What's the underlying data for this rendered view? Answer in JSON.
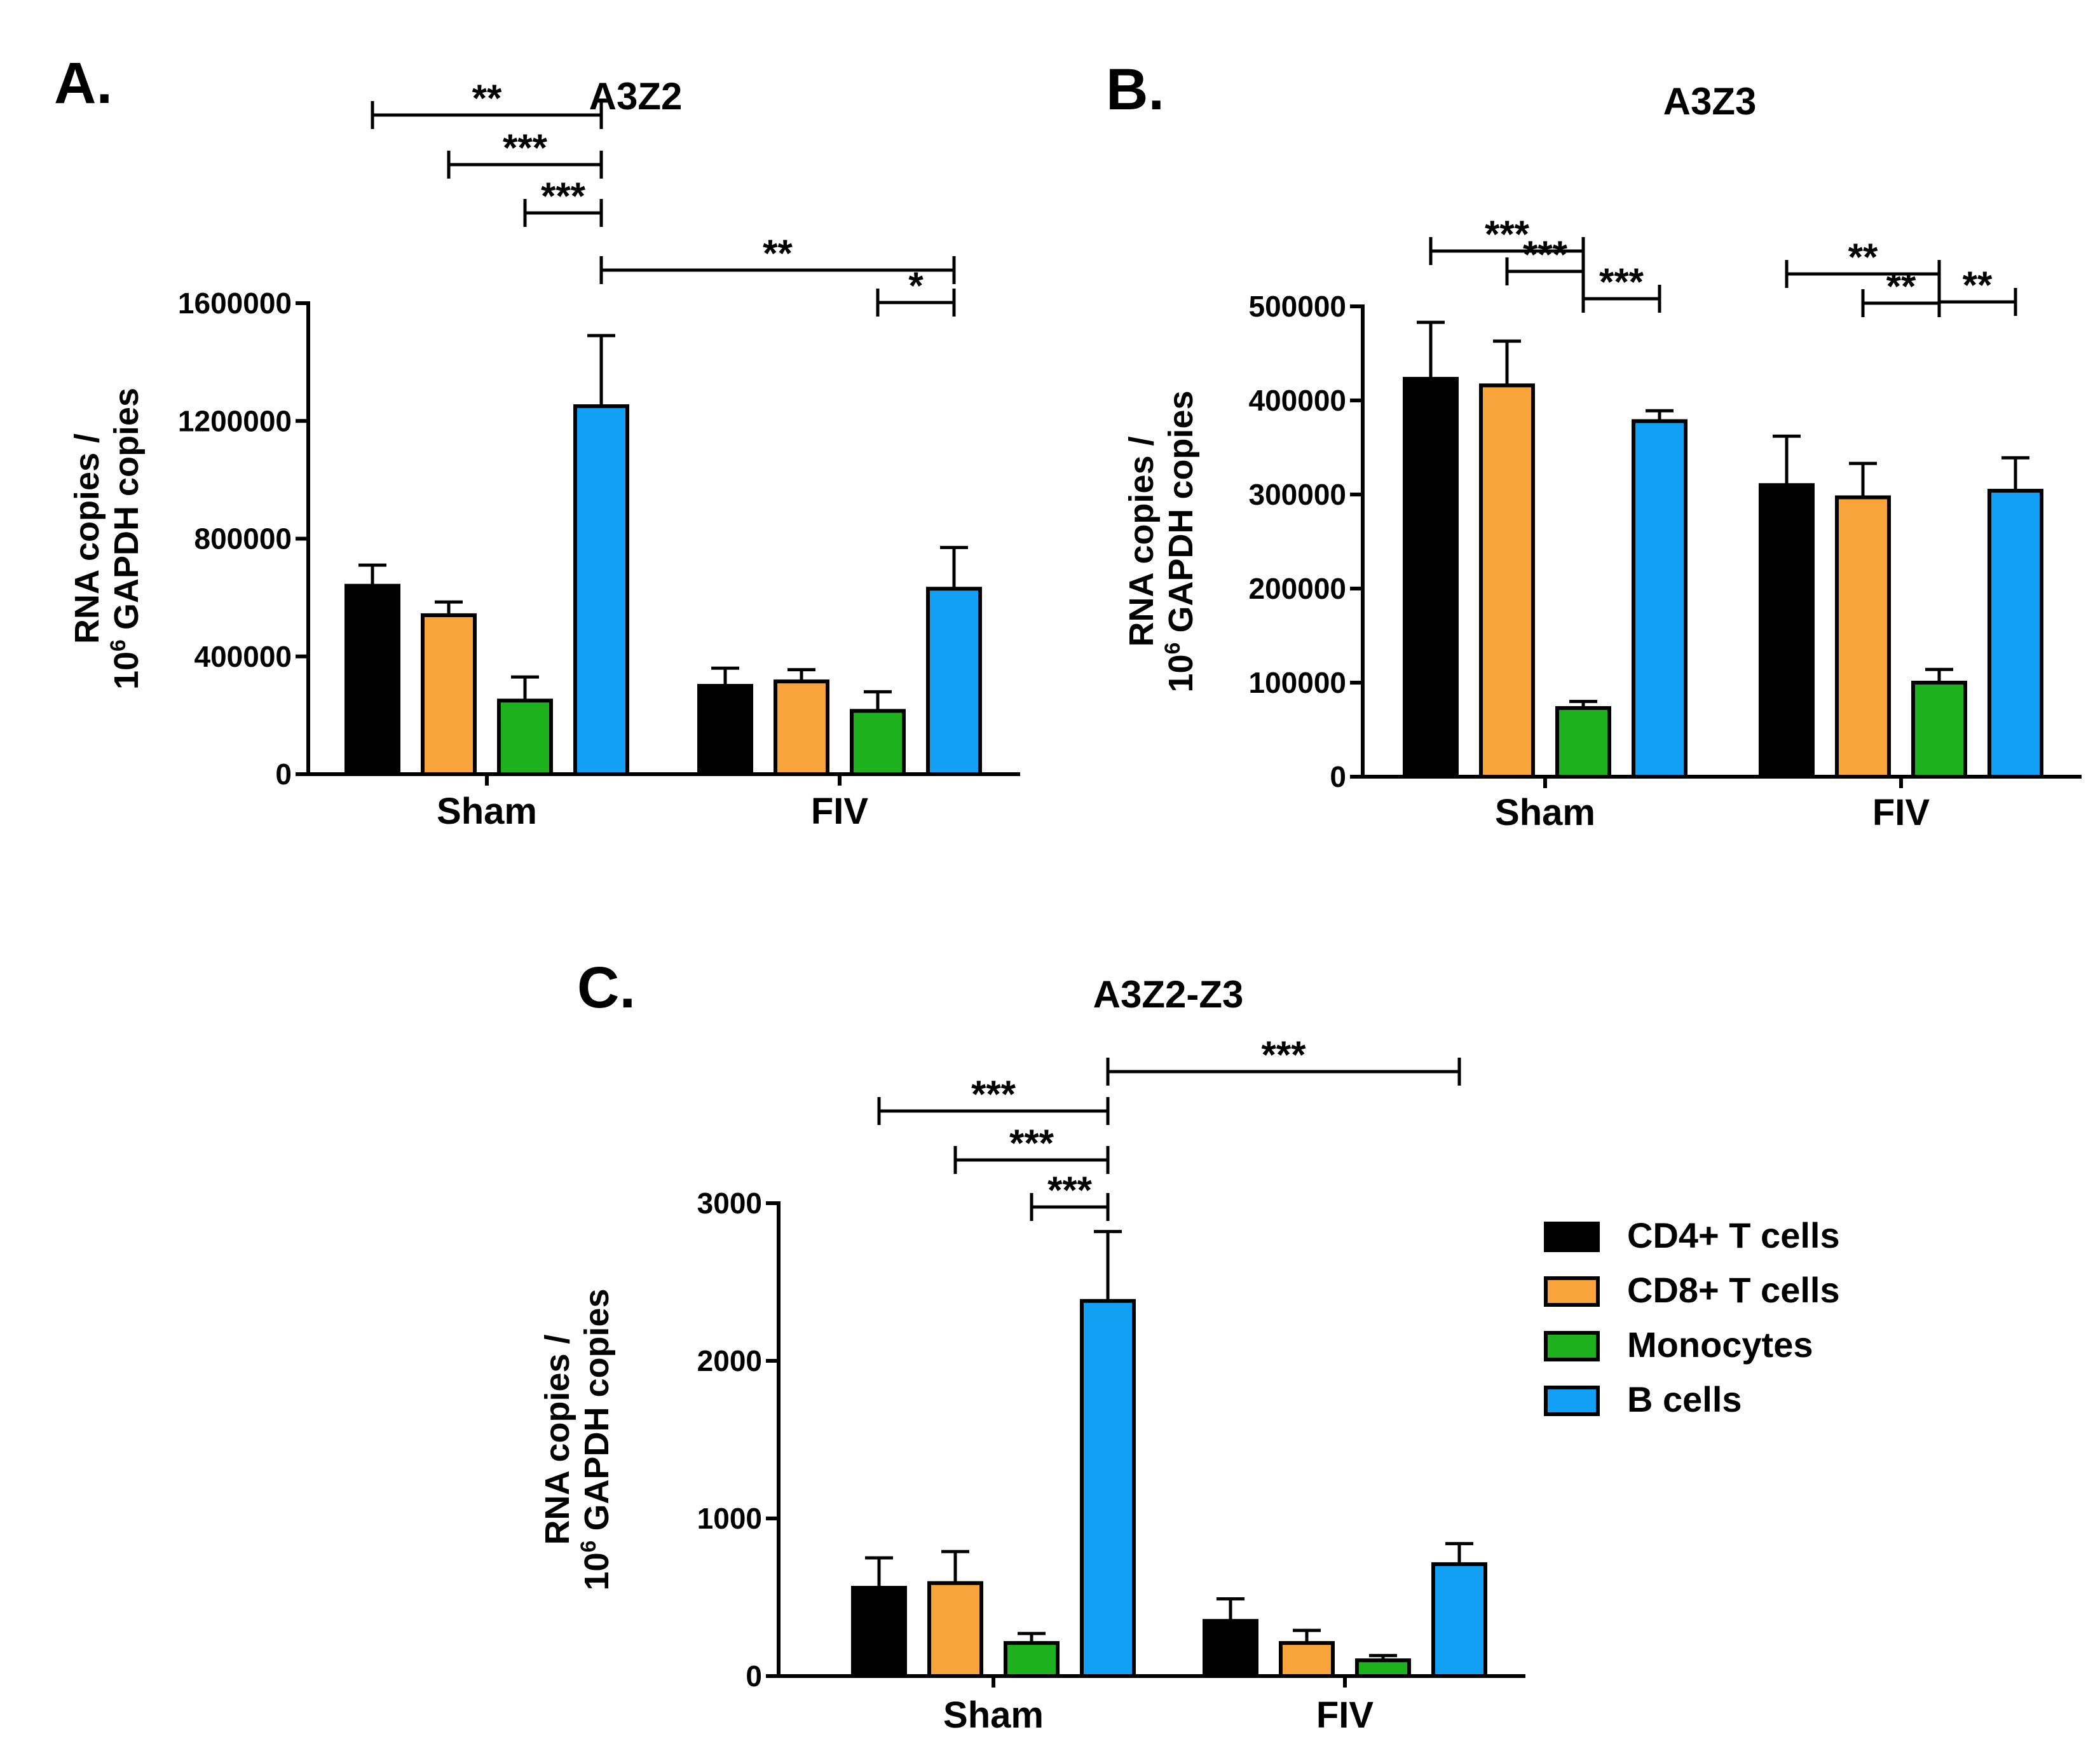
{
  "legend": {
    "series": [
      {
        "name": "CD4+ T cells",
        "color": "#000000"
      },
      {
        "name": "CD8+ T cells",
        "color": "#F9A33B"
      },
      {
        "name": "Monocytes",
        "color": "#1DB11D"
      },
      {
        "name": "B cells",
        "color": "#12A0F5"
      }
    ]
  },
  "chart_data": [
    {
      "panel": "A.",
      "type": "bar",
      "title": "A3Z2",
      "ylabel_line1": "RNA copies /",
      "ylabel_line2_pre": "10",
      "ylabel_line2_sup": "6",
      "ylabel_line2_post": " GAPDH copies",
      "categories": [
        "Sham",
        "FIV"
      ],
      "ylim": [
        0,
        1600000
      ],
      "yticks": [
        "0",
        "400000",
        "800000",
        "1200000",
        "1600000"
      ],
      "series": [
        {
          "name": "CD4+ T cells",
          "values": [
            640000,
            300000
          ],
          "errors": [
            70000,
            60000
          ]
        },
        {
          "name": "CD8+ T cells",
          "values": [
            540000,
            315000
          ],
          "errors": [
            45000,
            40000
          ]
        },
        {
          "name": "Monocytes",
          "values": [
            250000,
            215000
          ],
          "errors": [
            80000,
            65000
          ]
        },
        {
          "name": "B cells",
          "values": [
            1250000,
            630000
          ],
          "errors": [
            240000,
            140000
          ]
        }
      ],
      "significance": [
        {
          "from": [
            0,
            0
          ],
          "to": [
            0,
            3
          ],
          "label": "**"
        },
        {
          "from": [
            0,
            1
          ],
          "to": [
            0,
            3
          ],
          "label": "***"
        },
        {
          "from": [
            0,
            2
          ],
          "to": [
            0,
            3
          ],
          "label": "***"
        },
        {
          "from": [
            0,
            3
          ],
          "to": [
            1,
            3
          ],
          "label": "**"
        },
        {
          "from": [
            1,
            2
          ],
          "to": [
            1,
            3
          ],
          "label": "*"
        }
      ]
    },
    {
      "panel": "B.",
      "type": "bar",
      "title": "A3Z3",
      "ylabel_line1": "RNA copies /",
      "ylabel_line2_pre": "10",
      "ylabel_line2_sup": "6",
      "ylabel_line2_post": " GAPDH copies",
      "categories": [
        "Sham",
        "FIV"
      ],
      "ylim": [
        0,
        500000
      ],
      "yticks": [
        "0",
        "100000",
        "200000",
        "300000",
        "400000",
        "500000"
      ],
      "series": [
        {
          "name": "CD4+ T cells",
          "values": [
            423000,
            310000
          ],
          "errors": [
            60000,
            52000
          ]
        },
        {
          "name": "CD8+ T cells",
          "values": [
            416000,
            297000
          ],
          "errors": [
            47000,
            36000
          ]
        },
        {
          "name": "Monocytes",
          "values": [
            73000,
            100000
          ],
          "errors": [
            7000,
            14000
          ]
        },
        {
          "name": "B cells",
          "values": [
            378000,
            304000
          ],
          "errors": [
            11000,
            35000
          ]
        }
      ],
      "significance": [
        {
          "from": [
            0,
            0
          ],
          "to": [
            0,
            2
          ],
          "label": "***"
        },
        {
          "from": [
            0,
            1
          ],
          "to": [
            0,
            2
          ],
          "label": "***"
        },
        {
          "from": [
            0,
            2
          ],
          "to": [
            0,
            3
          ],
          "label": "***"
        },
        {
          "from": [
            1,
            0
          ],
          "to": [
            1,
            2
          ],
          "label": "**"
        },
        {
          "from": [
            1,
            1
          ],
          "to": [
            1,
            2
          ],
          "label": "**"
        },
        {
          "from": [
            1,
            2
          ],
          "to": [
            1,
            3
          ],
          "label": "**"
        }
      ]
    },
    {
      "panel": "C.",
      "type": "bar",
      "title": "A3Z2-Z3",
      "ylabel_line1": "RNA copies /",
      "ylabel_line2_pre": "10",
      "ylabel_line2_sup": "6",
      "ylabel_line2_post": " GAPDH copies",
      "categories": [
        "Sham",
        "FIV"
      ],
      "ylim": [
        0,
        3000
      ],
      "yticks": [
        "0",
        "1000",
        "2000",
        "3000"
      ],
      "series": [
        {
          "name": "CD4+ T cells",
          "values": [
            560,
            350
          ],
          "errors": [
            190,
            140
          ]
        },
        {
          "name": "CD8+ T cells",
          "values": [
            590,
            210
          ],
          "errors": [
            200,
            80
          ]
        },
        {
          "name": "Monocytes",
          "values": [
            210,
            100
          ],
          "errors": [
            60,
            30
          ]
        },
        {
          "name": "B cells",
          "values": [
            2380,
            710
          ],
          "errors": [
            440,
            130
          ]
        }
      ],
      "significance": [
        {
          "from": [
            0,
            0
          ],
          "to": [
            0,
            3
          ],
          "label": "***"
        },
        {
          "from": [
            0,
            1
          ],
          "to": [
            0,
            3
          ],
          "label": "***"
        },
        {
          "from": [
            0,
            2
          ],
          "to": [
            0,
            3
          ],
          "label": "***"
        },
        {
          "from": [
            0,
            3
          ],
          "to": [
            1,
            3
          ],
          "label": "***"
        }
      ]
    }
  ]
}
